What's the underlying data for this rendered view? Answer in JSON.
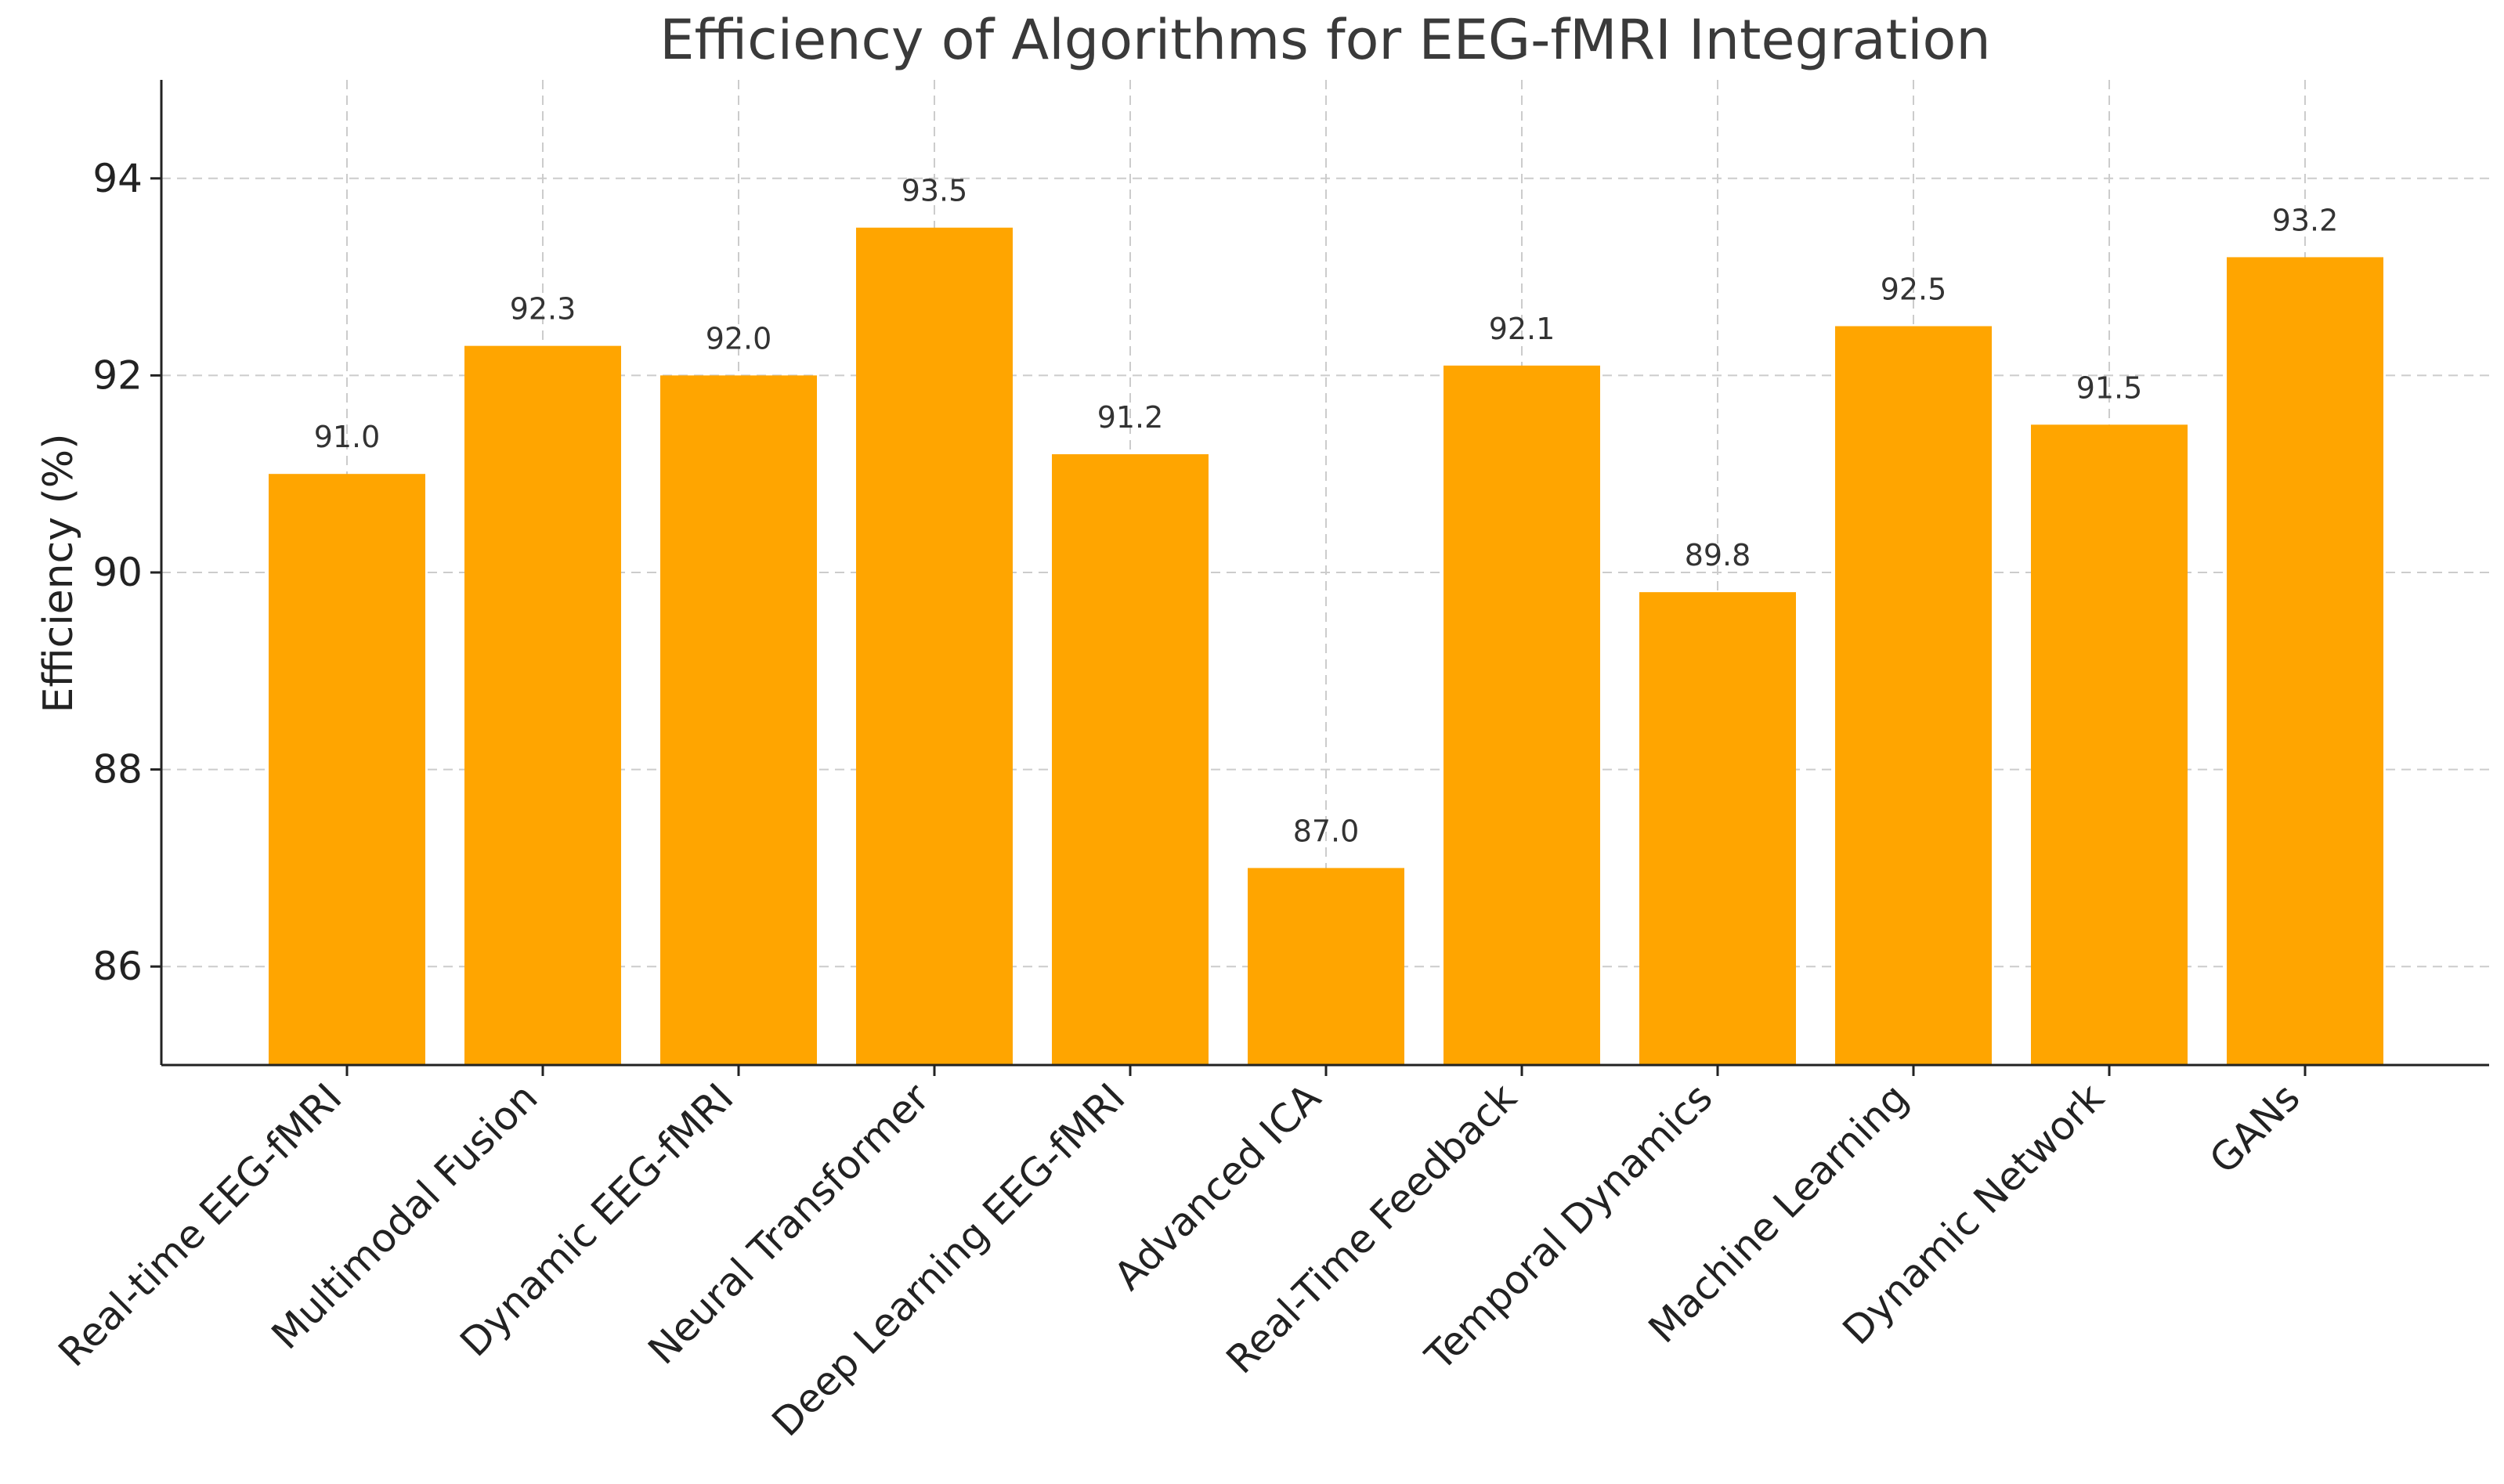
{
  "chart_data": {
    "type": "bar",
    "title": "Efficiency of Algorithms for EEG-fMRI Integration",
    "xlabel": "",
    "ylabel": "Efficiency (%)",
    "ylim": [
      85,
      95
    ],
    "yticks": [
      86,
      88,
      90,
      92,
      94
    ],
    "grid": true,
    "bar_color": "#FFA500",
    "categories": [
      "Real-time EEG-fMRI",
      "Multimodal Fusion",
      "Dynamic EEG-fMRI",
      "Neural Transformer",
      "Deep Learning EEG-fMRI",
      "Advanced ICA",
      "Real-Time Feedback",
      "Temporal Dynamics",
      "Machine Learning",
      "Dynamic Network",
      "GANs"
    ],
    "values": [
      91.0,
      92.3,
      92.0,
      93.5,
      91.2,
      87.0,
      92.1,
      89.8,
      92.5,
      91.5,
      93.2
    ],
    "data_labels": [
      "91.0",
      "92.3",
      "92.0",
      "93.5",
      "91.2",
      "87.0",
      "92.1",
      "89.8",
      "92.5",
      "91.5",
      "93.2"
    ]
  }
}
